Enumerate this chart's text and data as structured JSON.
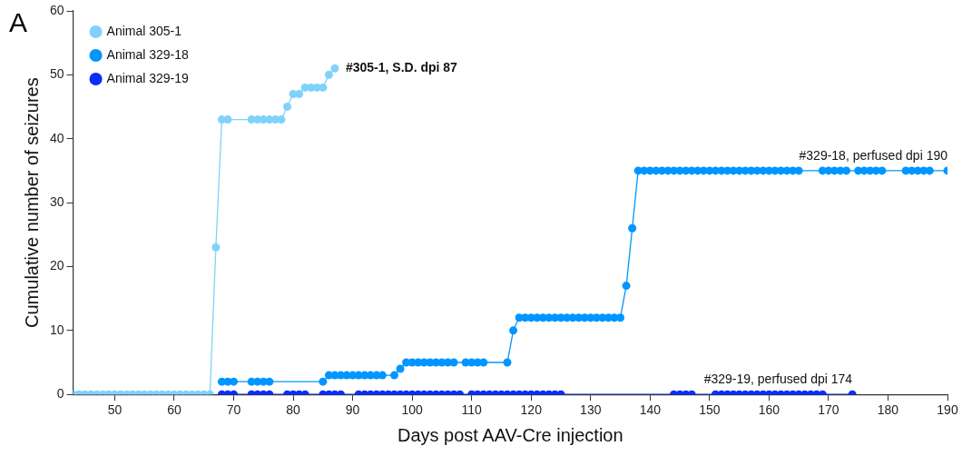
{
  "chart_data": {
    "type": "line",
    "xlabel": "Days post AAV-Cre injection",
    "ylabel": "Cumulative number of seizures",
    "xlim": [
      43,
      190
    ],
    "xticks": [
      50,
      60,
      70,
      80,
      90,
      100,
      110,
      120,
      130,
      140,
      150,
      160,
      170,
      180,
      190
    ],
    "ylim": [
      0,
      60
    ],
    "yticks": [
      0,
      10,
      20,
      30,
      40,
      50,
      60
    ],
    "grid": false,
    "legend": "top left",
    "marker": "circle",
    "line_style": "solid",
    "annotations": [
      "A",
      {
        "text": "#305-1, S.D. dpi 87",
        "x": 87,
        "y": 51
      },
      {
        "text": "#329-18, perfused dpi 190",
        "x": 190,
        "y": 35
      },
      {
        "text": "#329-19, perfused dpi 174",
        "x": 174,
        "y": 0
      }
    ],
    "series": [
      {
        "name": "Animal 305-1",
        "color": "#7fd3fa",
        "x": [
          43,
          44,
          45,
          46,
          47,
          48,
          49,
          50,
          51,
          52,
          53,
          54,
          55,
          56,
          57,
          58,
          59,
          60,
          61,
          62,
          63,
          64,
          65,
          66,
          67,
          68,
          69,
          73,
          74,
          75,
          76,
          77,
          78,
          79,
          80,
          81,
          82,
          83,
          84,
          85,
          86,
          87
        ],
        "values": [
          0,
          0,
          0,
          0,
          0,
          0,
          0,
          0,
          0,
          0,
          0,
          0,
          0,
          0,
          0,
          0,
          0,
          0,
          0,
          0,
          0,
          0,
          0,
          0,
          23,
          43,
          43,
          43,
          43,
          43,
          43,
          43,
          43,
          45,
          47,
          47,
          48,
          48,
          48,
          48,
          50,
          51
        ]
      },
      {
        "name": "Animal 329-18",
        "color": "#0096ff",
        "x": [
          68,
          69,
          70,
          73,
          74,
          75,
          76,
          85,
          86,
          87,
          88,
          89,
          90,
          91,
          92,
          93,
          94,
          95,
          97,
          98,
          99,
          100,
          101,
          102,
          103,
          104,
          105,
          106,
          107,
          109,
          110,
          111,
          112,
          116,
          117,
          118,
          119,
          120,
          121,
          122,
          123,
          124,
          125,
          126,
          127,
          128,
          129,
          130,
          131,
          132,
          133,
          134,
          135,
          136,
          137,
          138,
          139,
          140,
          141,
          142,
          143,
          144,
          145,
          146,
          147,
          148,
          149,
          150,
          151,
          152,
          153,
          154,
          155,
          156,
          157,
          158,
          159,
          160,
          161,
          162,
          163,
          164,
          165,
          169,
          170,
          171,
          172,
          173,
          175,
          176,
          177,
          178,
          179,
          183,
          184,
          185,
          186,
          187,
          190
        ],
        "values": [
          2,
          2,
          2,
          2,
          2,
          2,
          2,
          2,
          3,
          3,
          3,
          3,
          3,
          3,
          3,
          3,
          3,
          3,
          3,
          4,
          5,
          5,
          5,
          5,
          5,
          5,
          5,
          5,
          5,
          5,
          5,
          5,
          5,
          5,
          10,
          12,
          12,
          12,
          12,
          12,
          12,
          12,
          12,
          12,
          12,
          12,
          12,
          12,
          12,
          12,
          12,
          12,
          12,
          17,
          26,
          35,
          35,
          35,
          35,
          35,
          35,
          35,
          35,
          35,
          35,
          35,
          35,
          35,
          35,
          35,
          35,
          35,
          35,
          35,
          35,
          35,
          35,
          35,
          35,
          35,
          35,
          35,
          35,
          35,
          35,
          35,
          35,
          35,
          35,
          35,
          35,
          35,
          35,
          35,
          35,
          35,
          35,
          35,
          35
        ]
      },
      {
        "name": "Animal 329-19",
        "color": "#0a2eff",
        "x": [
          68,
          69,
          70,
          73,
          74,
          75,
          76,
          79,
          80,
          81,
          82,
          85,
          86,
          87,
          88,
          91,
          92,
          93,
          94,
          95,
          96,
          97,
          98,
          99,
          100,
          101,
          102,
          103,
          104,
          105,
          106,
          107,
          108,
          110,
          111,
          112,
          113,
          114,
          115,
          116,
          117,
          118,
          119,
          120,
          121,
          122,
          123,
          124,
          125,
          144,
          145,
          146,
          147,
          151,
          152,
          153,
          154,
          155,
          156,
          157,
          158,
          159,
          160,
          161,
          162,
          163,
          164,
          165,
          166,
          167,
          168,
          169,
          174
        ],
        "values": [
          0,
          0,
          0,
          0,
          0,
          0,
          0,
          0,
          0,
          0,
          0,
          0,
          0,
          0,
          0,
          0,
          0,
          0,
          0,
          0,
          0,
          0,
          0,
          0,
          0,
          0,
          0,
          0,
          0,
          0,
          0,
          0,
          0,
          0,
          0,
          0,
          0,
          0,
          0,
          0,
          0,
          0,
          0,
          0,
          0,
          0,
          0,
          0,
          0,
          0,
          0,
          0,
          0,
          0,
          0,
          0,
          0,
          0,
          0,
          0,
          0,
          0,
          0,
          0,
          0,
          0,
          0,
          0,
          0,
          0,
          0,
          0,
          0
        ]
      }
    ]
  }
}
